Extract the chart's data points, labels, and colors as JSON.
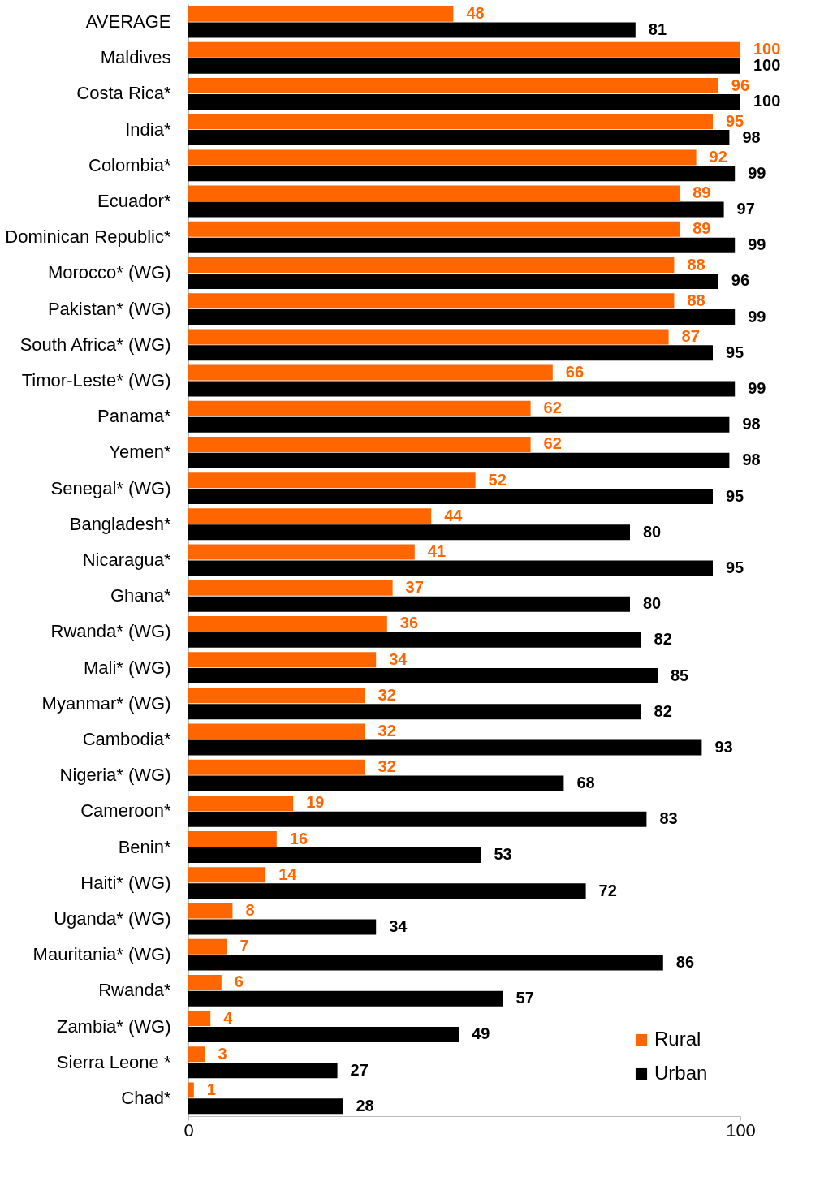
{
  "chart_data": {
    "type": "bar",
    "orientation": "horizontal",
    "categories": [
      "AVERAGE",
      "Maldives",
      "Costa Rica*",
      "India*",
      "Colombia*",
      "Ecuador*",
      "Dominican Republic*",
      "Morocco* (WG)",
      "Pakistan* (WG)",
      "South Africa* (WG)",
      "Timor-Leste* (WG)",
      "Panama*",
      "Yemen*",
      "Senegal* (WG)",
      "Bangladesh*",
      "Nicaragua*",
      "Ghana*",
      "Rwanda* (WG)",
      "Mali* (WG)",
      "Myanmar* (WG)",
      "Cambodia*",
      "Nigeria* (WG)",
      "Cameroon*",
      "Benin*",
      "Haiti* (WG)",
      "Uganda* (WG)",
      "Mauritania* (WG)",
      "Rwanda*",
      "Zambia* (WG)",
      "Sierra Leone *",
      "Chad*"
    ],
    "series": [
      {
        "name": "Rural",
        "color": "#ff6600",
        "values": [
          48,
          100,
          96,
          95,
          92,
          89,
          89,
          88,
          88,
          87,
          66,
          62,
          62,
          52,
          44,
          41,
          37,
          36,
          34,
          32,
          32,
          32,
          19,
          16,
          14,
          8,
          7,
          6,
          4,
          3,
          1
        ]
      },
      {
        "name": "Urban",
        "color": "#000000",
        "values": [
          81,
          100,
          100,
          98,
          99,
          97,
          99,
          96,
          99,
          95,
          99,
          98,
          98,
          95,
          80,
          95,
          80,
          82,
          85,
          82,
          93,
          68,
          83,
          53,
          72,
          34,
          86,
          57,
          49,
          27,
          28
        ]
      }
    ],
    "xlim": [
      0,
      100
    ],
    "xticks": [
      0,
      100
    ],
    "data_labels": true,
    "legend": "bottom right",
    "grid": false
  }
}
